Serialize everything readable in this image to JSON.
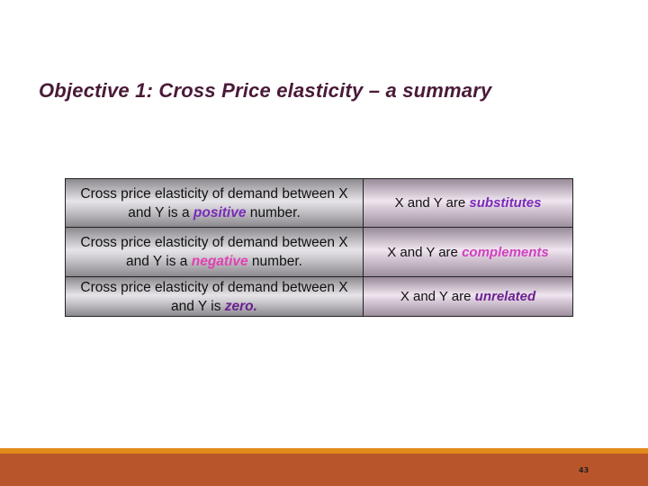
{
  "title": "Objective 1: Cross Price elasticity – a summary",
  "rows": [
    {
      "cond_pre": "Cross price elasticity of demand between X and Y is a ",
      "cond_em": "positive",
      "cond_post": " number.",
      "cond_color": "#7a2ab8",
      "res_pre": "X and Y are ",
      "res_em": "substitutes",
      "res_color": "#7a2ab8"
    },
    {
      "cond_pre": "Cross price elasticity of demand between X and Y is a ",
      "cond_em": "negative",
      "cond_post": " number.",
      "cond_color": "#e040b0",
      "res_pre": "X and Y are ",
      "res_em": "complements",
      "res_color": "#d040c0"
    },
    {
      "cond_pre": "Cross price elasticity of demand between X and Y is ",
      "cond_em": "zero.",
      "cond_post": "",
      "cond_color": "#6a2090",
      "res_pre": "X and Y are ",
      "res_em": "unrelated",
      "res_color": "#6a2090"
    }
  ],
  "page_number": "43",
  "colors": {
    "footer": "#b9552b",
    "stripe": "#e28a1c",
    "title": "#4a1a38"
  }
}
